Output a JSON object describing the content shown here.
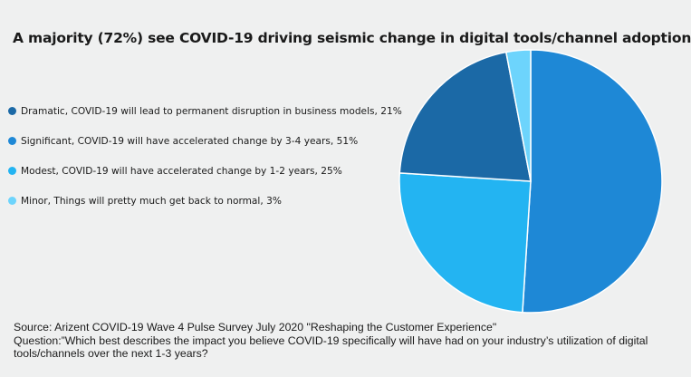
{
  "chart_data": {
    "type": "pie",
    "title": "A majority (72%) see COVID-19 driving seismic change in digital tools/channel adoption",
    "legend_position": "left",
    "slices": [
      {
        "label": "Dramatic, COVID-19 will lead to permanent disruption in business models, 21%",
        "value": 21,
        "color": "#1b69a6"
      },
      {
        "label": "Significant, COVID-19 will have accelerated change by 3-4 years, 51%",
        "value": 51,
        "color": "#1e88d6"
      },
      {
        "label": "Modest, COVID-19 will have accelerated change by 1-2 years, 25%",
        "value": 25,
        "color": "#23b4f2"
      },
      {
        "label": "Minor, Things will pretty much get back to normal, 3%",
        "value": 3,
        "color": "#6dd4fc"
      }
    ],
    "draw_order": [
      1,
      2,
      0,
      3
    ]
  },
  "source": "Source: Arizent COVID-19 Wave 4 Pulse Survey July 2020 \"Reshaping the Customer Experience\"",
  "question": "Question:”Which best describes the impact you believe COVID-19 specifically will have had on your industry’s utilization of digital tools/channels over the next 1-3 years?"
}
